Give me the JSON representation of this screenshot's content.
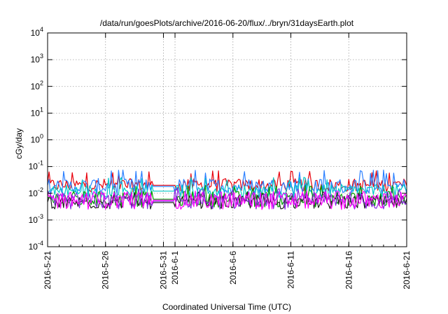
{
  "chart_data": {
    "type": "line",
    "title": "/data/run/goesPlots/archive/2016-06-20/flux/../bryn/31daysEarth.plot",
    "xlabel": "Coordinated Universal Time (UTC)",
    "ylabel": "cGy/day",
    "yscale": "log",
    "ylim": [
      0.0001,
      10000
    ],
    "y_ticks": [
      {
        "base": "10",
        "exp": "-4"
      },
      {
        "base": "10",
        "exp": "-3"
      },
      {
        "base": "10",
        "exp": "-2"
      },
      {
        "base": "10",
        "exp": "-1"
      },
      {
        "base": "10",
        "exp": "0"
      },
      {
        "base": "10",
        "exp": "1"
      },
      {
        "base": "10",
        "exp": "2"
      },
      {
        "base": "10",
        "exp": "3"
      },
      {
        "base": "10",
        "exp": "4"
      }
    ],
    "xlim": [
      "2016-05-21",
      "2016-06-21"
    ],
    "x_ticks": [
      "2016-5-21",
      "2016-5-26",
      "2016-5-31",
      "2016-6-1",
      "2016-6-6",
      "2016-6-11",
      "2016-6-16",
      "2016-6-21"
    ],
    "grid": true,
    "gap": [
      "2016-05-30",
      "2016-06-01"
    ],
    "series": [
      {
        "color": "#e8000b",
        "base": 0.02,
        "spread": 0.25,
        "spike": 0.07
      },
      {
        "color": "#2a7fff",
        "base": 0.018,
        "spread": 0.3,
        "spike": 0.075
      },
      {
        "color": "#00c8c8",
        "base": 0.012,
        "spread": 0.25,
        "spike": 0.04
      },
      {
        "color": "#00a000",
        "base": 0.006,
        "spread": 0.3,
        "spike": 0.02
      },
      {
        "color": "#202020",
        "base": 0.0045,
        "spread": 0.25,
        "spike": 0.012
      },
      {
        "color": "#8a2be2",
        "base": 0.005,
        "spread": 0.3,
        "spike": 0.015
      },
      {
        "color": "#ff00ff",
        "base": 0.0055,
        "spread": 0.35,
        "spike": 0.012
      }
    ]
  }
}
